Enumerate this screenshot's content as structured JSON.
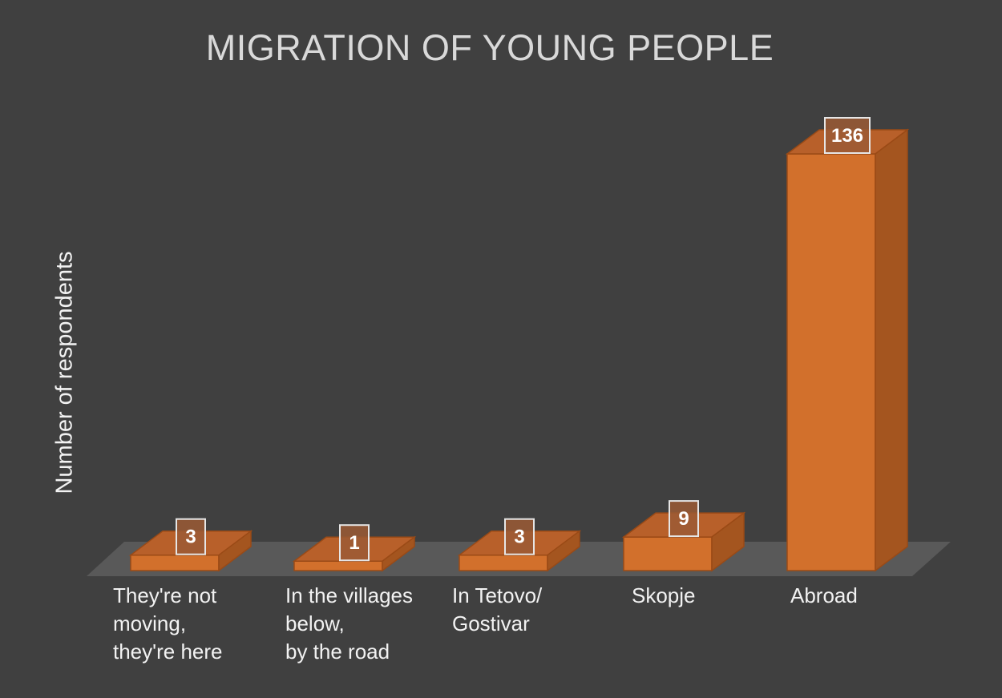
{
  "chart_data": {
    "type": "bar",
    "title": "MIGRATION OF YOUNG PEOPLE",
    "ylabel": "Number of respondents",
    "xlabel": "",
    "categories": [
      "They're not\nmoving,\nthey're here",
      "In the villages\nbelow,\nby the road",
      "In Tetovo/\nGostivar",
      "Skopje",
      "Abroad"
    ],
    "values": [
      3,
      1,
      3,
      9,
      136
    ],
    "data_labels": [
      "3",
      "1",
      "3",
      "9",
      "136"
    ],
    "ylim": [
      0,
      136
    ],
    "grid": false,
    "legend": "none",
    "style": "3d-column"
  },
  "colors": {
    "background": "#404040",
    "floor": "#595959",
    "bar_front": "#d2702c",
    "bar_top": "#b8602a",
    "bar_side": "#a4551f",
    "bar_edge": "#9a4a16",
    "label_box_fill": "#9b5a35",
    "label_box_stroke": "#e6e6e6",
    "title": "#d9d9d9",
    "text": "#f2f2f2"
  }
}
